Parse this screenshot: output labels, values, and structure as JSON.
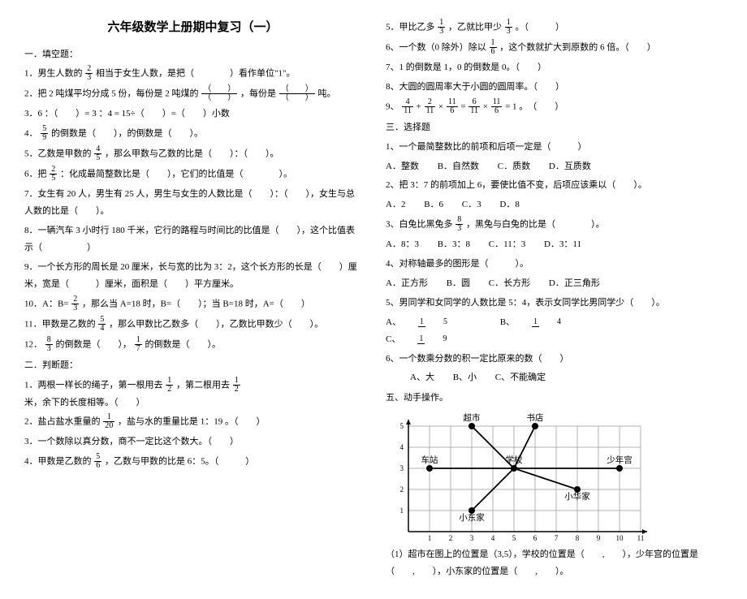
{
  "title": "六年级数学上册期中复习（一）",
  "left": {
    "sec1": "一．填空题：",
    "q1a": "1．男生人数的",
    "q1b": "相当于女生人数，是把（　　　　）看作单位\"1\"。",
    "q2a": "2．把 2 吨煤平均分成 5 份，每份是 2 吨煤的",
    "q2b": "，每份是",
    "q2c": "吨。",
    "q3": "3．6 ：（　　）= 3 ：4 = 15÷（　　）=（　　）小数",
    "q4a": "4．",
    "q4b": "的倒数是（　　），的倒数是（　　）。",
    "q5a": "5．乙数是甲数的",
    "q5b": "，那么甲数与乙数的比是（　　）：（　　）。",
    "q6a": "6．把",
    "q6b": "：化成最简整数比是（　　），它们的比值是（　　　　）。",
    "q7": "7．女生有 20 人，男生有 25 人，男生与女生的人数比是（　　）：（　　），女生与总人数的比是（　　）。",
    "q8": "8．一辆汽车 3 小时行 180 千米，它行的路程与时间比的比值是（　　），这个比值表示（　　　　　）",
    "q9": "9．一个长方形的周长是 20 厘米，长与宽的比为 3：2，这个长方形的长是（　　）厘米，宽是（　　　）厘米，面积是（　　）平方厘米。",
    "q10a": "10．A：B=",
    "q10b": "，那么当 A=18 时，B=（　　）；当 B=18 时，A=（　　）",
    "q11a": "11．甲数是乙数的",
    "q11b": "，那么甲数比乙数多（　　），乙数比甲数少（　　）。",
    "q12a": "12．",
    "q12b": "的倒数是（　　），",
    "q12c": "的倒数是（　　）。",
    "sec2": "二．判断题：",
    "j1a": "1．两根一样长的绳子，第一根用去",
    "j1b": "，第二根用去",
    "j1c": "米，余下的长度相等。（　　）",
    "j2a": "2．盐占盐水重量的",
    "j2b": "，盐与水的重量比是 1：19 。（　　）",
    "j3": "3．一个数除以真分数，商不一定比这个数大。（　　）",
    "j4a": "4．甲数是乙数的",
    "j4b": "，乙数与甲数的比是 6：5。（　　　）"
  },
  "right": {
    "r5a": "5．甲比乙多",
    "r5b": "，乙就比甲少",
    "r5c": "。（　　　）",
    "r6a": "6、一个数（0 除外）除以",
    "r6b": "，这个数就扩大到原数的 6 倍。（　　）",
    "r7": "7、1 的倒数是 1，0 的倒数是 0。（　　）",
    "r8": "8、大圆的圆周率大于小圆的圆周率。（　　）",
    "r9a": "9、",
    "r9b": "。　（　　）",
    "sec3": "三．选择题",
    "s1": "1、一个最简整数比的前项和后项一定是（　　　）",
    "s1o": {
      "a": "A．整数",
      "b": "B．自然数",
      "c": "C．质数",
      "d": "D．互质数"
    },
    "s2": "2、把 3：7 的前项加上 6，要使比值不变，后项应该乘以（　　）。",
    "s2o": {
      "a": "A．2",
      "b": "B．6",
      "c": "C．3",
      "d": "D．8"
    },
    "s3a": "3、白兔比黑兔多",
    "s3b": "，黑兔与白兔的比是（　　　　）。",
    "s3o": {
      "a": "A．8：3",
      "b": "B．3：8",
      "c": "C．11：3",
      "d": "D．3：11"
    },
    "s4": "4、对称轴最多的图形是（　　　）。",
    "s4o": {
      "a": "A．正方形",
      "b": "B．圆",
      "c": "C．长方形",
      "d": "D．正三角形"
    },
    "s5": "5、男同学和女同学的人数比是 5：4，表示女同学比男同学少（　　）。",
    "s5o": {
      "a": "A、",
      "b": "B、",
      "c": "C、"
    },
    "s6": "6、一个数乘分数的积一定比原来的数（　　）",
    "s6o": {
      "a": "A、大",
      "b": "B、小",
      "c": "C、不能确定"
    },
    "sec5": "五、动手操作。",
    "grid": {
      "labels": {
        "chaoshi": "超市",
        "shudian": "书店",
        "chezhan": "车站",
        "xuexiao": "学校",
        "shaonian": "少年宫",
        "xiaodong": "小东家",
        "xiaohua": "小华家"
      },
      "points": [
        {
          "x": 3,
          "y": 5,
          "key": "chaoshi"
        },
        {
          "x": 6,
          "y": 5,
          "key": "shudian"
        },
        {
          "x": 1,
          "y": 3,
          "key": "chezhan"
        },
        {
          "x": 5,
          "y": 3,
          "key": "xuexiao"
        },
        {
          "x": 10,
          "y": 3,
          "key": "shaonian"
        },
        {
          "x": 3,
          "y": 1,
          "key": "xiaodong"
        },
        {
          "x": 8,
          "y": 2,
          "key": "xiaohua"
        }
      ],
      "edges": [
        [
          3,
          5,
          5,
          3
        ],
        [
          6,
          5,
          5,
          3
        ],
        [
          1,
          3,
          5,
          3
        ],
        [
          5,
          3,
          10,
          3
        ],
        [
          5,
          3,
          3,
          1
        ],
        [
          5,
          3,
          8,
          2
        ]
      ]
    },
    "g1": "（1）超市在图上的位置是（3,5），学校的位置是（　　,　　），少年宫的位置是（　　,　　），小东家的位置是（　　,　　）。"
  },
  "colors": {
    "text": "#000000",
    "bg": "#ffffff",
    "grid": "#b0b0b0"
  }
}
